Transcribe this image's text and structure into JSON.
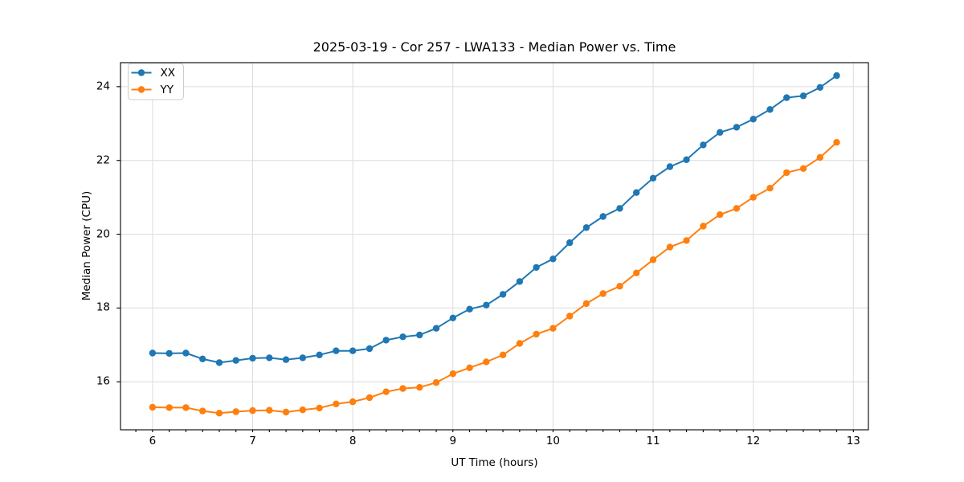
{
  "chart_data": {
    "type": "line",
    "title": "2025-03-19 - Cor 257 - LWA133 - Median Power vs. Time",
    "xlabel": "UT Time (hours)",
    "ylabel": "Median Power (CPU)",
    "xlim": [
      5.68,
      13.15
    ],
    "ylim": [
      14.7,
      24.65
    ],
    "x_major_ticks": [
      6,
      7,
      8,
      9,
      10,
      11,
      12,
      13
    ],
    "x_minor_step": 0.1666667,
    "y_major_ticks": [
      16,
      18,
      20,
      22,
      24
    ],
    "grid": true,
    "legend_position": "upper left",
    "x": [
      6.0,
      6.167,
      6.333,
      6.5,
      6.667,
      6.833,
      7.0,
      7.167,
      7.333,
      7.5,
      7.667,
      7.833,
      8.0,
      8.167,
      8.333,
      8.5,
      8.667,
      8.833,
      9.0,
      9.167,
      9.333,
      9.5,
      9.667,
      9.833,
      10.0,
      10.167,
      10.333,
      10.5,
      10.667,
      10.833,
      11.0,
      11.167,
      11.333,
      11.5,
      11.667,
      11.833,
      12.0,
      12.167,
      12.333,
      12.5,
      12.667,
      12.833
    ],
    "series": [
      {
        "name": "XX",
        "color": "#1f77b4",
        "values": [
          16.78,
          16.77,
          16.78,
          16.62,
          16.52,
          16.58,
          16.64,
          16.65,
          16.6,
          16.65,
          16.73,
          16.84,
          16.84,
          16.9,
          17.13,
          17.22,
          17.27,
          17.45,
          17.73,
          17.97,
          18.08,
          18.37,
          18.72,
          19.1,
          19.33,
          19.77,
          20.18,
          20.48,
          20.7,
          21.13,
          21.52,
          21.83,
          22.02,
          22.42,
          22.76,
          22.9,
          23.12,
          23.38,
          23.7,
          23.75,
          23.98,
          24.3
        ]
      },
      {
        "name": "YY",
        "color": "#ff7f0e",
        "values": [
          15.31,
          15.3,
          15.3,
          15.21,
          15.15,
          15.19,
          15.22,
          15.23,
          15.18,
          15.24,
          15.29,
          15.4,
          15.46,
          15.57,
          15.73,
          15.82,
          15.85,
          15.98,
          16.22,
          16.38,
          16.54,
          16.73,
          17.04,
          17.29,
          17.45,
          17.78,
          18.12,
          18.39,
          18.59,
          18.95,
          19.31,
          19.65,
          19.83,
          20.22,
          20.53,
          20.7,
          21.0,
          21.25,
          21.67,
          21.78,
          22.08,
          22.49
        ]
      }
    ],
    "colors": {
      "grid": "#dcdcdc",
      "spine": "#000000",
      "legend_border": "#cccccc",
      "background": "#ffffff"
    }
  }
}
